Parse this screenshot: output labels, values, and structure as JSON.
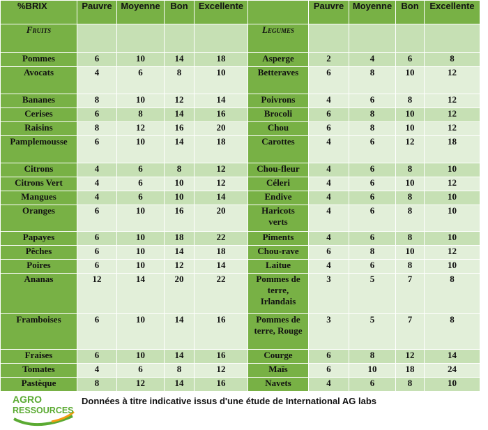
{
  "headers": {
    "brix": "%BRIX",
    "cols": [
      "Pauvre",
      "Moyenne",
      "Bon",
      "Excellente"
    ]
  },
  "sections": {
    "left": "Fruits",
    "right": "Legumes"
  },
  "rows": [
    {
      "fruit": "Pommes",
      "fv": [
        "6",
        "10",
        "14",
        "18"
      ],
      "veg": "Asperge",
      "vv": [
        "2",
        "4",
        "6",
        "8"
      ]
    },
    {
      "fruit": "Avocats",
      "fv": [
        "4",
        "6",
        "8",
        "10"
      ],
      "veg": "Betteraves",
      "vv": [
        "6",
        "8",
        "10",
        "12"
      ]
    },
    {
      "fruit": "Bananes",
      "fv": [
        "8",
        "10",
        "12",
        "14"
      ],
      "veg": "Poivrons",
      "vv": [
        "4",
        "6",
        "8",
        "12"
      ]
    },
    {
      "fruit": "Cerises",
      "fv": [
        "6",
        "8",
        "14",
        "16"
      ],
      "veg": "Brocoli",
      "vv": [
        "6",
        "8",
        "10",
        "12"
      ]
    },
    {
      "fruit": "Raisins",
      "fv": [
        "8",
        "12",
        "16",
        "20"
      ],
      "veg": "Chou",
      "vv": [
        "6",
        "8",
        "10",
        "12"
      ]
    },
    {
      "fruit": "Pamplemousse",
      "fv": [
        "6",
        "10",
        "14",
        "18"
      ],
      "veg": "Carottes",
      "vv": [
        "4",
        "6",
        "12",
        "18"
      ]
    },
    {
      "fruit": "Citrons",
      "fv": [
        "4",
        "6",
        "8",
        "12"
      ],
      "veg": "Chou-fleur",
      "vv": [
        "4",
        "6",
        "8",
        "10"
      ]
    },
    {
      "fruit": "Citrons Vert",
      "fv": [
        "4",
        "6",
        "10",
        "12"
      ],
      "veg": "Céleri",
      "vv": [
        "4",
        "6",
        "10",
        "12"
      ]
    },
    {
      "fruit": "Mangues",
      "fv": [
        "4",
        "6",
        "10",
        "14"
      ],
      "veg": "Endive",
      "vv": [
        "4",
        "6",
        "8",
        "10"
      ]
    },
    {
      "fruit": "Oranges",
      "fv": [
        "6",
        "10",
        "16",
        "20"
      ],
      "veg": "Haricots verts",
      "vv": [
        "4",
        "6",
        "8",
        "10"
      ]
    },
    {
      "fruit": "Papayes",
      "fv": [
        "6",
        "10",
        "18",
        "22"
      ],
      "veg": "Piments",
      "vv": [
        "4",
        "6",
        "8",
        "10"
      ]
    },
    {
      "fruit": "Pêches",
      "fv": [
        "6",
        "10",
        "14",
        "18"
      ],
      "veg": "Chou-rave",
      "vv": [
        "6",
        "8",
        "10",
        "12"
      ]
    },
    {
      "fruit": "Poires",
      "fv": [
        "6",
        "10",
        "12",
        "14"
      ],
      "veg": "Laitue",
      "vv": [
        "4",
        "6",
        "8",
        "10"
      ]
    },
    {
      "fruit": "Ananas",
      "fv": [
        "12",
        "14",
        "20",
        "22"
      ],
      "veg": "Pommes de terre, Irlandais",
      "vv": [
        "3",
        "5",
        "7",
        "8"
      ]
    },
    {
      "fruit": "Framboises",
      "fv": [
        "6",
        "10",
        "14",
        "16"
      ],
      "veg": "Pommes de terre, Rouge",
      "vv": [
        "3",
        "5",
        "7",
        "8"
      ]
    },
    {
      "fruit": "Fraises",
      "fv": [
        "6",
        "10",
        "14",
        "16"
      ],
      "veg": "Courge",
      "vv": [
        "6",
        "8",
        "12",
        "14"
      ]
    },
    {
      "fruit": "Tomates",
      "fv": [
        "4",
        "6",
        "8",
        "12"
      ],
      "veg": "Maïs",
      "vv": [
        "6",
        "10",
        "18",
        "24"
      ]
    },
    {
      "fruit": "Pastèque",
      "fv": [
        "8",
        "12",
        "14",
        "16"
      ],
      "veg": "Navets",
      "vv": [
        "4",
        "6",
        "8",
        "10"
      ]
    }
  ],
  "footer": {
    "logo_top": "AGRO",
    "logo_bottom": "RESSOURCES",
    "note": "Données à titre indicative issus d'une étude de International AG labs"
  },
  "colors": {
    "header_green": "#78b145",
    "light_green": "#c6e0b4",
    "pale_green": "#e2efd9",
    "logo_green": "#5aaa32",
    "logo_orange": "#f39c12"
  }
}
